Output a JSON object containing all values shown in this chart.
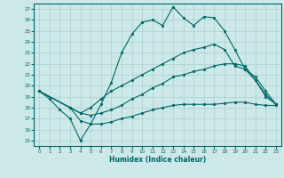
{
  "xlabel": "Humidex (Indice chaleur)",
  "bg_color": "#cce8e8",
  "line_color": "#006868",
  "grid_color": "#aad0d0",
  "ylim": [
    14.5,
    27.5
  ],
  "xlim": [
    -0.5,
    23.5
  ],
  "yticks": [
    15,
    16,
    17,
    18,
    19,
    20,
    21,
    22,
    23,
    24,
    25,
    26,
    27
  ],
  "xticks": [
    0,
    1,
    2,
    3,
    4,
    5,
    6,
    7,
    8,
    9,
    10,
    11,
    12,
    13,
    14,
    15,
    16,
    17,
    18,
    19,
    20,
    21,
    22,
    23
  ],
  "line1_x": [
    0,
    1,
    2,
    3,
    4,
    5,
    6,
    7,
    8,
    9,
    10,
    11,
    12,
    13,
    14,
    15,
    16,
    17,
    18,
    19,
    20,
    21,
    22,
    23
  ],
  "line1_y": [
    19.5,
    18.8,
    17.8,
    17.0,
    15.0,
    16.5,
    18.3,
    20.3,
    23.0,
    24.7,
    25.8,
    26.0,
    25.5,
    27.2,
    26.2,
    25.5,
    26.3,
    26.2,
    25.0,
    23.3,
    21.5,
    20.5,
    19.0,
    18.3
  ],
  "line2_x": [
    0,
    3,
    4,
    5,
    6,
    7,
    8,
    9,
    10,
    11,
    12,
    13,
    14,
    15,
    16,
    17,
    18,
    19,
    20,
    21,
    22,
    23
  ],
  "line2_y": [
    19.5,
    18.0,
    17.5,
    18.0,
    18.8,
    19.5,
    20.0,
    20.5,
    21.0,
    21.5,
    22.0,
    22.5,
    23.0,
    23.3,
    23.5,
    23.8,
    23.3,
    21.8,
    21.5,
    20.8,
    19.5,
    18.3
  ],
  "line3_x": [
    0,
    3,
    4,
    5,
    6,
    7,
    8,
    9,
    10,
    11,
    12,
    13,
    14,
    15,
    16,
    17,
    18,
    19,
    20,
    21,
    22,
    23
  ],
  "line3_y": [
    19.5,
    18.0,
    17.5,
    17.3,
    17.5,
    17.8,
    18.2,
    18.8,
    19.2,
    19.8,
    20.2,
    20.8,
    21.0,
    21.3,
    21.5,
    21.8,
    22.0,
    22.0,
    21.8,
    20.5,
    19.2,
    18.3
  ],
  "line4_x": [
    0,
    3,
    4,
    5,
    6,
    7,
    8,
    9,
    10,
    11,
    12,
    13,
    14,
    15,
    16,
    17,
    18,
    19,
    20,
    21,
    22,
    23
  ],
  "line4_y": [
    19.5,
    18.0,
    16.8,
    16.5,
    16.5,
    16.7,
    17.0,
    17.2,
    17.5,
    17.8,
    18.0,
    18.2,
    18.3,
    18.3,
    18.3,
    18.3,
    18.4,
    18.5,
    18.5,
    18.3,
    18.2,
    18.2
  ]
}
